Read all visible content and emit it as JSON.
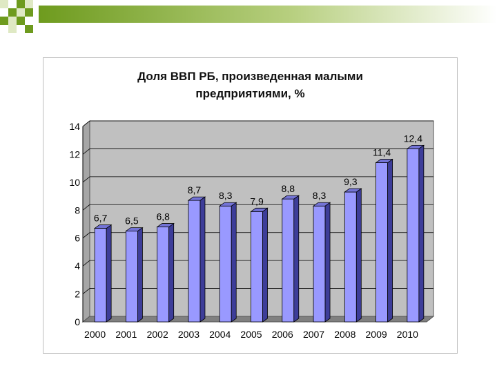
{
  "chart_data": {
    "type": "bar",
    "title_lines": [
      "Доля ВВП РБ, произведенная малыми",
      "предприятиями, %"
    ],
    "categories": [
      "2000",
      "2001",
      "2002",
      "2003",
      "2004",
      "2005",
      "2006",
      "2007",
      "2008",
      "2009",
      "2010"
    ],
    "values": [
      6.7,
      6.5,
      6.8,
      8.7,
      8.3,
      7.9,
      8.8,
      8.3,
      9.3,
      11.4,
      12.4
    ],
    "value_labels": [
      "6,7",
      "6,5",
      "6,8",
      "8,7",
      "8,3",
      "7,9",
      "8,8",
      "8,3",
      "9,3",
      "11,4",
      "12,4"
    ],
    "y_ticks": [
      "0",
      "2",
      "4",
      "6",
      "8",
      "10",
      "12",
      "14"
    ],
    "ylim": [
      0,
      14
    ],
    "grid": true,
    "legend": "none",
    "colors": {
      "bar_front": "#9999ff",
      "bar_side": "#3d3d99",
      "bar_top": "#7373d6",
      "plot_wall": "#c0c0c0",
      "plot_floor": "#808080",
      "decor_green": "#6e9b1e",
      "decor_light": "#dfe9c4"
    }
  }
}
